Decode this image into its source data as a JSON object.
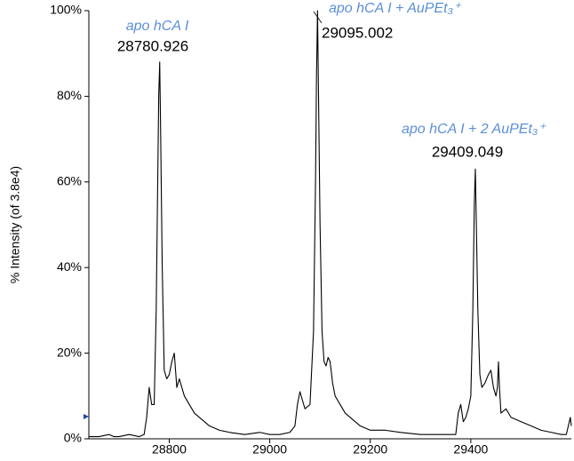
{
  "chart_data": {
    "type": "line",
    "y_label": "% Intensity (of 3.8e4)",
    "annotations": [
      {
        "text": "apo hCA I",
        "kind": "name"
      },
      {
        "text": "28780.926",
        "kind": "mass"
      },
      {
        "text": "apo hCA I + AuPEt₃⁺",
        "kind": "name"
      },
      {
        "text": "29095.002",
        "kind": "mass"
      },
      {
        "text": "apo hCA I + 2 AuPEt₃⁺",
        "kind": "name"
      },
      {
        "text": "29409.049",
        "kind": "mass"
      }
    ],
    "x": [
      28640,
      28660,
      28680,
      28690,
      28700,
      28720,
      28740,
      28750,
      28755,
      28760,
      28765,
      28770,
      28774,
      28777,
      28779,
      28781,
      28783,
      28786,
      28790,
      28795,
      28800,
      28805,
      28810,
      28815,
      28820,
      28830,
      28840,
      28850,
      28860,
      28880,
      28900,
      28920,
      28950,
      28980,
      29000,
      29020,
      29040,
      29050,
      29055,
      29060,
      29065,
      29070,
      29080,
      29087,
      29091,
      29093,
      29095,
      29097,
      29100,
      29104,
      29108,
      29112,
      29116,
      29120,
      29125,
      29130,
      29140,
      29150,
      29160,
      29180,
      29200,
      29230,
      29260,
      29300,
      29340,
      29370,
      29375,
      29380,
      29385,
      29390,
      29395,
      29400,
      29404,
      29407,
      29409,
      29411,
      29414,
      29418,
      29422,
      29428,
      29435,
      29440,
      29445,
      29450,
      29453,
      29455,
      29457,
      29460,
      29470,
      29480,
      29500,
      29520,
      29540,
      29560,
      29580,
      29590,
      29598,
      29600
    ],
    "series": [
      {
        "color": "#000000",
        "values": [
          0.5,
          0.5,
          1,
          0.5,
          0.5,
          1,
          0.5,
          1,
          5,
          12,
          8,
          8,
          30,
          60,
          80,
          88,
          70,
          40,
          16,
          14,
          15,
          18,
          20,
          12,
          14,
          10,
          8,
          6,
          5,
          3,
          2,
          1.5,
          1,
          1.5,
          1,
          1,
          1.5,
          3,
          8,
          11,
          9,
          7,
          8,
          25,
          60,
          85,
          100,
          80,
          50,
          25,
          18,
          17,
          19,
          18,
          13,
          10,
          8,
          6,
          5,
          3,
          2,
          2,
          1.5,
          1,
          1,
          1,
          6,
          8,
          4,
          5,
          7,
          10,
          30,
          55,
          63,
          50,
          30,
          15,
          12,
          13,
          15,
          16,
          12,
          10,
          12,
          18,
          12,
          6,
          7,
          5,
          4,
          3,
          2,
          1.5,
          1,
          1,
          5,
          3
        ]
      }
    ],
    "xlim": [
      28640,
      29600
    ],
    "xticks": [
      28800,
      29000,
      29200,
      29400
    ],
    "ylim": [
      0,
      100
    ],
    "yticks": [
      {
        "value": 0,
        "label": "0%"
      },
      {
        "value": 20,
        "label": "20%"
      },
      {
        "value": 40,
        "label": "40%"
      },
      {
        "value": 60,
        "label": "60%"
      },
      {
        "value": 80,
        "label": "80%"
      },
      {
        "value": 100,
        "label": "100%"
      }
    ]
  }
}
